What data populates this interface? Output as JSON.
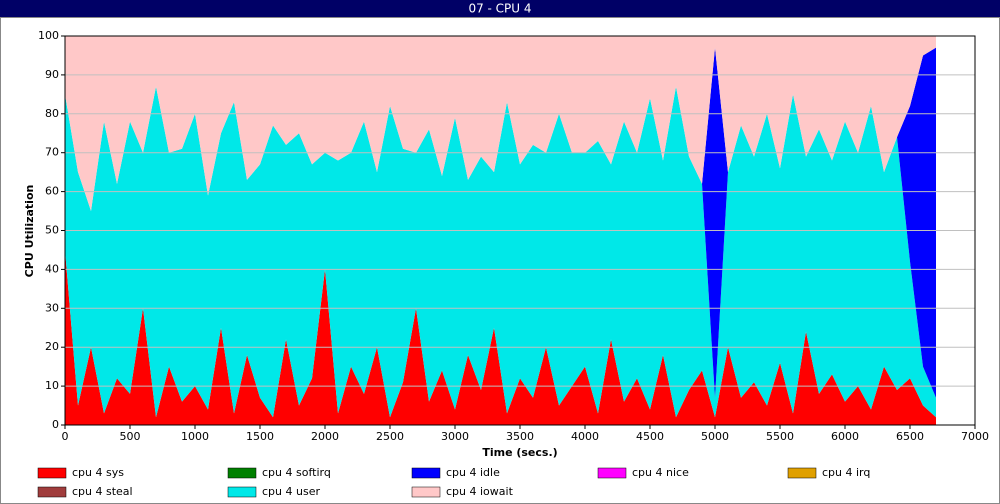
{
  "chart_data": {
    "type": "area",
    "title": "07 - CPU 4",
    "x_label": "Time (secs.)",
    "y_label": "CPU Utilization",
    "stacked": true,
    "grid": true,
    "xlim": [
      0,
      7000
    ],
    "ylim": [
      0,
      100
    ],
    "xticks": [
      0,
      500,
      1000,
      1500,
      2000,
      2500,
      3000,
      3500,
      4000,
      4500,
      5000,
      5500,
      6000,
      6500,
      7000
    ],
    "yticks": [
      0,
      10,
      20,
      30,
      40,
      50,
      60,
      70,
      80,
      90,
      100
    ],
    "x": [
      0,
      100,
      200,
      300,
      400,
      500,
      600,
      700,
      800,
      900,
      1000,
      1100,
      1200,
      1300,
      1400,
      1500,
      1600,
      1700,
      1800,
      1900,
      2000,
      2100,
      2200,
      2300,
      2400,
      2500,
      2600,
      2700,
      2800,
      2900,
      3000,
      3100,
      3200,
      3300,
      3400,
      3500,
      3600,
      3700,
      3800,
      3900,
      4000,
      4100,
      4200,
      4300,
      4400,
      4500,
      4600,
      4700,
      4800,
      4900,
      5000,
      5100,
      5200,
      5300,
      5400,
      5500,
      5600,
      5700,
      5800,
      5900,
      6000,
      6100,
      6200,
      6300,
      6400,
      6500,
      6600,
      6700
    ],
    "series": [
      {
        "name": "cpu 4 sys",
        "color": "#ff0000",
        "values": [
          45,
          5,
          20,
          3,
          12,
          8,
          30,
          2,
          15,
          6,
          10,
          4,
          25,
          3,
          18,
          7,
          2,
          22,
          5,
          12,
          40,
          3,
          15,
          8,
          20,
          2,
          11,
          30,
          6,
          14,
          4,
          18,
          9,
          25,
          3,
          12,
          7,
          20,
          5,
          10,
          15,
          3,
          22,
          6,
          12,
          4,
          18,
          2,
          9,
          14,
          2,
          20,
          7,
          11,
          5,
          16,
          3,
          24,
          8,
          13,
          6,
          10,
          4,
          15,
          9,
          12,
          5,
          2
        ]
      },
      {
        "name": "cpu 4 softirq",
        "color": "#008000",
        "values": [
          0,
          0,
          0,
          0,
          0,
          0,
          0,
          0,
          0,
          0,
          0,
          0,
          0,
          0,
          0,
          0,
          0,
          0,
          0,
          0,
          0,
          0,
          0,
          0,
          0,
          0,
          0,
          0,
          0,
          0,
          0,
          0,
          0,
          0,
          0,
          0,
          0,
          0,
          0,
          0,
          0,
          0,
          0,
          0,
          0,
          0,
          0,
          0,
          0,
          0,
          0,
          0,
          0,
          0,
          0,
          0,
          0,
          0,
          0,
          0,
          0,
          0,
          0,
          0,
          0,
          0,
          0,
          0
        ]
      },
      {
        "name": "cpu 4 idle",
        "color": "#0000ff",
        "values": [
          0,
          0,
          0,
          0,
          0,
          0,
          0,
          0,
          0,
          0,
          0,
          0,
          0,
          0,
          0,
          0,
          0,
          0,
          0,
          0,
          0,
          0,
          0,
          0,
          0,
          0,
          0,
          0,
          0,
          0,
          0,
          0,
          0,
          0,
          0,
          0,
          0,
          0,
          0,
          0,
          0,
          0,
          0,
          0,
          0,
          0,
          0,
          0,
          0,
          0,
          90,
          0,
          0,
          0,
          0,
          0,
          0,
          0,
          0,
          0,
          0,
          0,
          0,
          0,
          0,
          40,
          80,
          90
        ]
      },
      {
        "name": "cpu 4 nice",
        "color": "#ff00ff",
        "values": [
          0,
          0,
          0,
          0,
          0,
          0,
          0,
          0,
          0,
          0,
          0,
          0,
          0,
          0,
          0,
          0,
          0,
          0,
          0,
          0,
          0,
          0,
          0,
          0,
          0,
          0,
          0,
          0,
          0,
          0,
          0,
          0,
          0,
          0,
          0,
          0,
          0,
          0,
          0,
          0,
          0,
          0,
          0,
          0,
          0,
          0,
          0,
          0,
          0,
          0,
          0,
          0,
          0,
          0,
          0,
          0,
          0,
          0,
          0,
          0,
          0,
          0,
          0,
          0,
          0,
          0,
          0,
          0
        ]
      },
      {
        "name": "cpu 4 irq",
        "color": "#e0a000",
        "values": [
          0,
          0,
          0,
          0,
          0,
          0,
          0,
          0,
          0,
          0,
          0,
          0,
          0,
          0,
          0,
          0,
          0,
          0,
          0,
          0,
          0,
          0,
          0,
          0,
          0,
          0,
          0,
          0,
          0,
          0,
          0,
          0,
          0,
          0,
          0,
          0,
          0,
          0,
          0,
          0,
          0,
          0,
          0,
          0,
          0,
          0,
          0,
          0,
          0,
          0,
          0,
          0,
          0,
          0,
          0,
          0,
          0,
          0,
          0,
          0,
          0,
          0,
          0,
          0,
          0,
          0,
          0,
          0
        ]
      },
      {
        "name": "cpu 4 steal",
        "color": "#a03c3c",
        "values": [
          0,
          0,
          0,
          0,
          0,
          0,
          0,
          0,
          0,
          0,
          0,
          0,
          0,
          0,
          0,
          0,
          0,
          0,
          0,
          0,
          0,
          0,
          0,
          0,
          0,
          0,
          0,
          0,
          0,
          0,
          0,
          0,
          0,
          0,
          0,
          0,
          0,
          0,
          0,
          0,
          0,
          0,
          0,
          0,
          0,
          0,
          0,
          0,
          0,
          0,
          0,
          0,
          0,
          0,
          0,
          0,
          0,
          0,
          0,
          0,
          0,
          0,
          0,
          0,
          0,
          0,
          0,
          0
        ]
      },
      {
        "name": "cpu 4 user",
        "color": "#00e8e8",
        "values": [
          40,
          60,
          35,
          75,
          50,
          70,
          40,
          85,
          55,
          65,
          70,
          55,
          50,
          80,
          45,
          60,
          75,
          50,
          70,
          55,
          30,
          65,
          55,
          70,
          45,
          80,
          60,
          40,
          70,
          50,
          75,
          45,
          60,
          40,
          80,
          55,
          65,
          50,
          75,
          60,
          55,
          70,
          45,
          72,
          58,
          80,
          50,
          85,
          60,
          48,
          5,
          45,
          70,
          58,
          75,
          50,
          82,
          45,
          68,
          55,
          72,
          60,
          78,
          50,
          65,
          30,
          10,
          5
        ]
      },
      {
        "name": "cpu 4 iowait",
        "color": "#ffc8c8",
        "values": [
          15,
          35,
          45,
          22,
          38,
          22,
          30,
          13,
          30,
          29,
          20,
          41,
          25,
          17,
          37,
          33,
          23,
          28,
          25,
          33,
          30,
          32,
          30,
          22,
          35,
          18,
          29,
          30,
          24,
          36,
          21,
          37,
          31,
          35,
          17,
          33,
          28,
          30,
          20,
          30,
          30,
          27,
          33,
          22,
          30,
          16,
          32,
          13,
          31,
          38,
          3,
          35,
          23,
          31,
          20,
          34,
          15,
          31,
          24,
          32,
          22,
          30,
          18,
          35,
          26,
          18,
          5,
          3
        ]
      }
    ]
  }
}
